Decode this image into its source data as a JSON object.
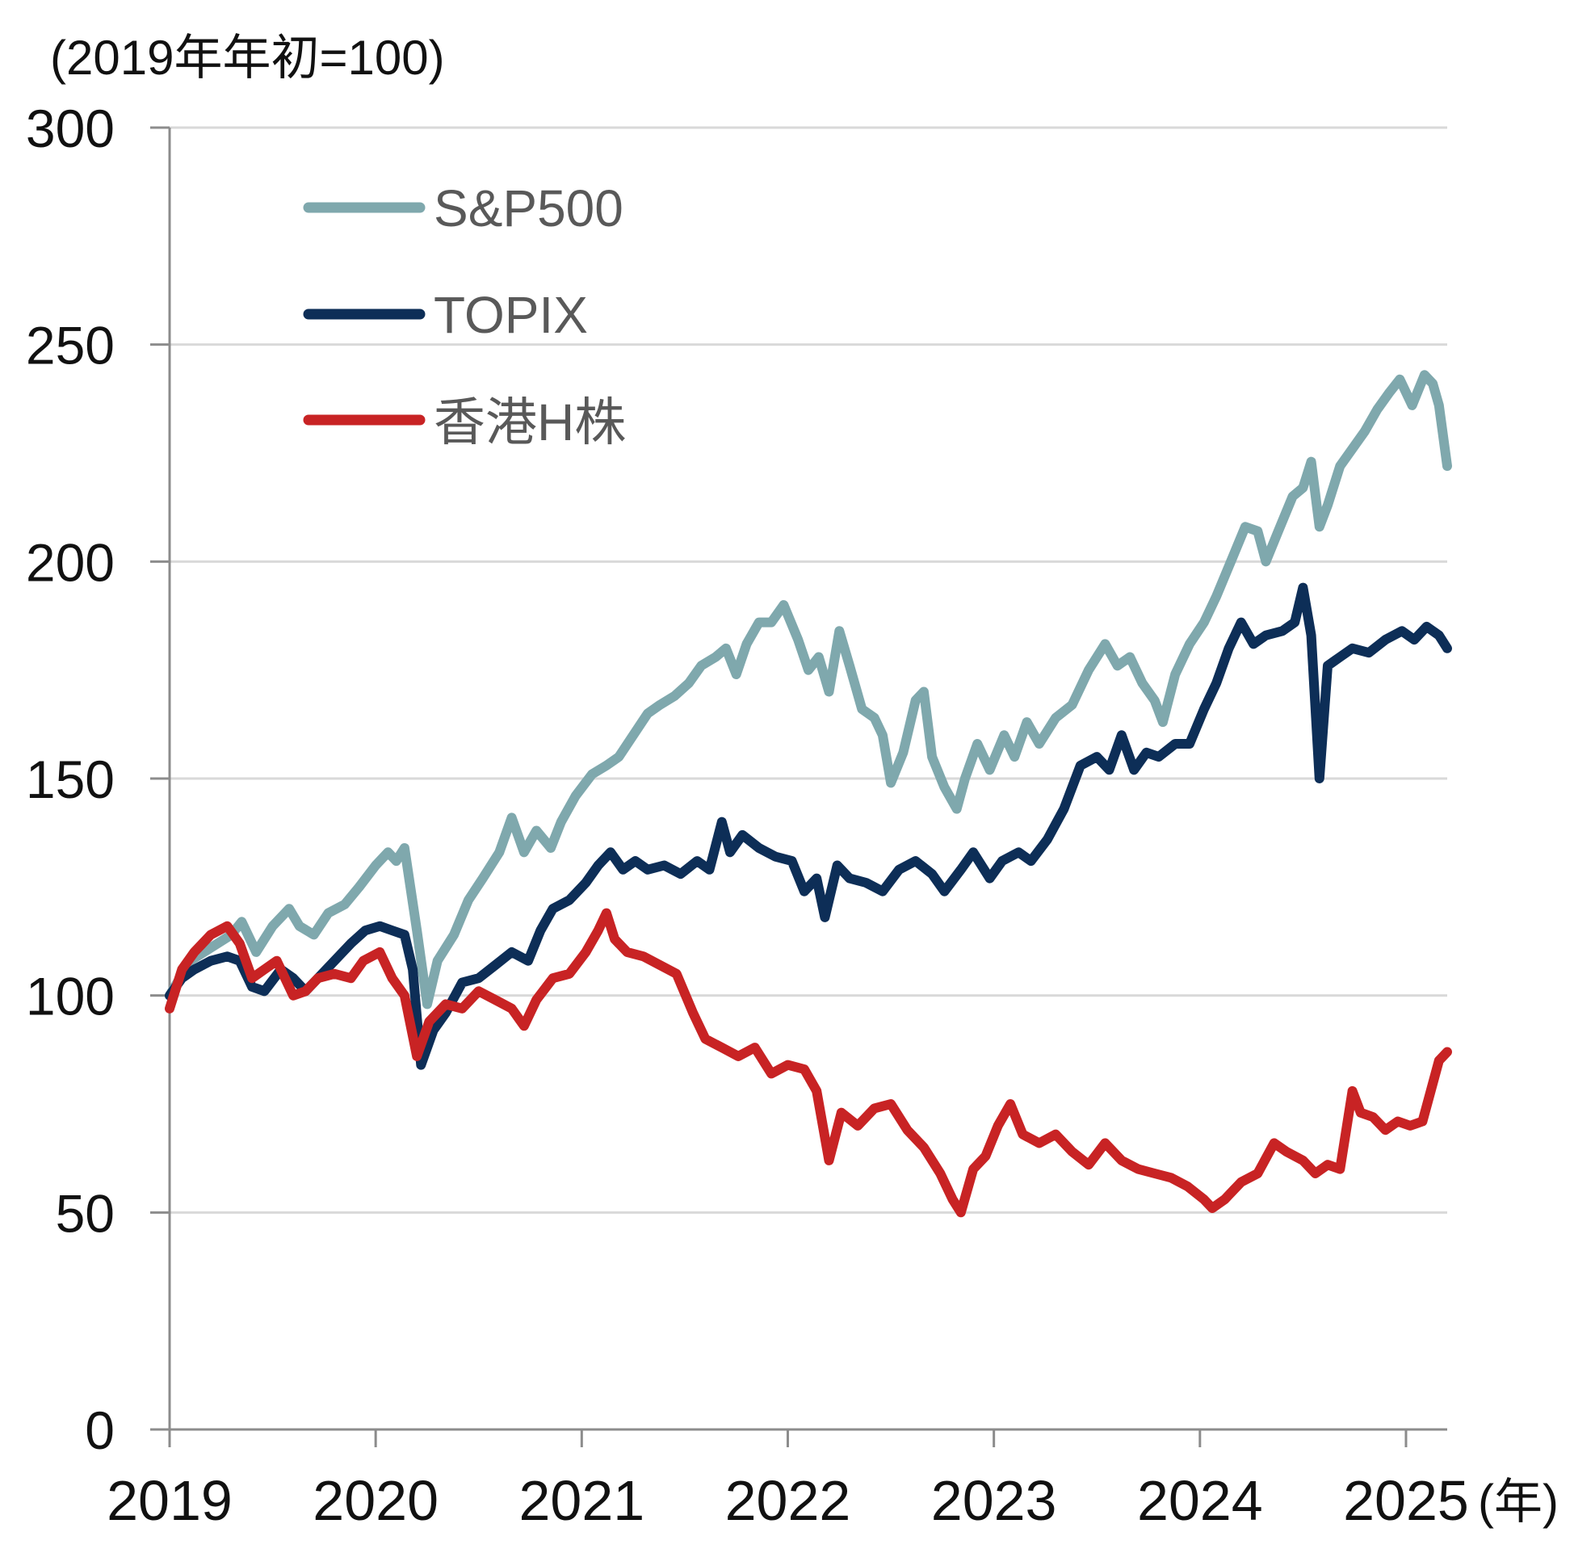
{
  "chart_data": {
    "type": "line",
    "unit_note": "(2019年年初=100)",
    "x_unit": "(年)",
    "xlim": [
      2019.0,
      2025.2
    ],
    "ylim": [
      0,
      300
    ],
    "y_ticks": [
      0,
      50,
      100,
      150,
      200,
      250,
      300
    ],
    "x_ticks": [
      2019,
      2020,
      2021,
      2022,
      2023,
      2024,
      2025
    ],
    "y_tick_labels": [
      "0",
      "50",
      "100",
      "150",
      "200",
      "250",
      "300"
    ],
    "x_tick_labels": [
      "2019",
      "2020",
      "2021",
      "2022",
      "2023",
      "2024",
      "2025"
    ],
    "grid": "horizontal",
    "legend_position": "top-left",
    "series": [
      {
        "name": "S&P500",
        "color": "#7FA8AD",
        "points": [
          [
            2019.0,
            100
          ],
          [
            2019.1,
            108
          ],
          [
            2019.2,
            111
          ],
          [
            2019.3,
            114
          ],
          [
            2019.35,
            117
          ],
          [
            2019.42,
            110
          ],
          [
            2019.5,
            116
          ],
          [
            2019.58,
            120
          ],
          [
            2019.63,
            116
          ],
          [
            2019.7,
            114
          ],
          [
            2019.77,
            119
          ],
          [
            2019.85,
            121
          ],
          [
            2019.92,
            125
          ],
          [
            2020.0,
            130
          ],
          [
            2020.06,
            133
          ],
          [
            2020.1,
            131
          ],
          [
            2020.14,
            134
          ],
          [
            2020.2,
            115
          ],
          [
            2020.25,
            98
          ],
          [
            2020.3,
            108
          ],
          [
            2020.38,
            114
          ],
          [
            2020.45,
            122
          ],
          [
            2020.52,
            127
          ],
          [
            2020.6,
            133
          ],
          [
            2020.66,
            141
          ],
          [
            2020.72,
            133
          ],
          [
            2020.78,
            138
          ],
          [
            2020.85,
            134
          ],
          [
            2020.9,
            140
          ],
          [
            2020.97,
            146
          ],
          [
            2021.05,
            151
          ],
          [
            2021.12,
            153
          ],
          [
            2021.18,
            155
          ],
          [
            2021.25,
            160
          ],
          [
            2021.32,
            165
          ],
          [
            2021.38,
            167
          ],
          [
            2021.45,
            169
          ],
          [
            2021.52,
            172
          ],
          [
            2021.58,
            176
          ],
          [
            2021.65,
            178
          ],
          [
            2021.7,
            180
          ],
          [
            2021.75,
            174
          ],
          [
            2021.8,
            181
          ],
          [
            2021.86,
            186
          ],
          [
            2021.92,
            186
          ],
          [
            2021.98,
            190
          ],
          [
            2022.05,
            182
          ],
          [
            2022.1,
            175
          ],
          [
            2022.15,
            178
          ],
          [
            2022.2,
            170
          ],
          [
            2022.25,
            184
          ],
          [
            2022.3,
            176
          ],
          [
            2022.36,
            166
          ],
          [
            2022.42,
            164
          ],
          [
            2022.46,
            160
          ],
          [
            2022.5,
            149
          ],
          [
            2022.56,
            156
          ],
          [
            2022.62,
            168
          ],
          [
            2022.66,
            170
          ],
          [
            2022.7,
            155
          ],
          [
            2022.76,
            148
          ],
          [
            2022.82,
            143
          ],
          [
            2022.86,
            150
          ],
          [
            2022.92,
            158
          ],
          [
            2022.98,
            152
          ],
          [
            2023.05,
            160
          ],
          [
            2023.1,
            155
          ],
          [
            2023.16,
            163
          ],
          [
            2023.22,
            158
          ],
          [
            2023.3,
            164
          ],
          [
            2023.38,
            167
          ],
          [
            2023.46,
            175
          ],
          [
            2023.54,
            181
          ],
          [
            2023.6,
            176
          ],
          [
            2023.66,
            178
          ],
          [
            2023.72,
            172
          ],
          [
            2023.78,
            168
          ],
          [
            2023.82,
            163
          ],
          [
            2023.88,
            174
          ],
          [
            2023.95,
            181
          ],
          [
            2024.02,
            186
          ],
          [
            2024.08,
            192
          ],
          [
            2024.15,
            200
          ],
          [
            2024.22,
            208
          ],
          [
            2024.28,
            207
          ],
          [
            2024.32,
            200
          ],
          [
            2024.38,
            207
          ],
          [
            2024.45,
            215
          ],
          [
            2024.5,
            217
          ],
          [
            2024.54,
            223
          ],
          [
            2024.58,
            208
          ],
          [
            2024.62,
            213
          ],
          [
            2024.68,
            222
          ],
          [
            2024.74,
            226
          ],
          [
            2024.8,
            230
          ],
          [
            2024.86,
            235
          ],
          [
            2024.92,
            239
          ],
          [
            2024.97,
            242
          ],
          [
            2025.03,
            236
          ],
          [
            2025.09,
            243
          ],
          [
            2025.13,
            241
          ],
          [
            2025.16,
            236
          ],
          [
            2025.2,
            222
          ]
        ]
      },
      {
        "name": "TOPIX",
        "color": "#0D2E57",
        "points": [
          [
            2019.0,
            100
          ],
          [
            2019.06,
            104
          ],
          [
            2019.12,
            106
          ],
          [
            2019.2,
            108
          ],
          [
            2019.28,
            109
          ],
          [
            2019.34,
            108
          ],
          [
            2019.4,
            102
          ],
          [
            2019.46,
            101
          ],
          [
            2019.54,
            106
          ],
          [
            2019.6,
            104
          ],
          [
            2019.66,
            101
          ],
          [
            2019.72,
            104
          ],
          [
            2019.8,
            108
          ],
          [
            2019.88,
            112
          ],
          [
            2019.95,
            115
          ],
          [
            2020.02,
            116
          ],
          [
            2020.08,
            115
          ],
          [
            2020.14,
            114
          ],
          [
            2020.18,
            106
          ],
          [
            2020.22,
            84
          ],
          [
            2020.28,
            92
          ],
          [
            2020.34,
            96
          ],
          [
            2020.42,
            103
          ],
          [
            2020.5,
            104
          ],
          [
            2020.58,
            107
          ],
          [
            2020.66,
            110
          ],
          [
            2020.74,
            108
          ],
          [
            2020.8,
            115
          ],
          [
            2020.86,
            120
          ],
          [
            2020.94,
            122
          ],
          [
            2021.02,
            126
          ],
          [
            2021.08,
            130
          ],
          [
            2021.14,
            133
          ],
          [
            2021.2,
            129
          ],
          [
            2021.26,
            131
          ],
          [
            2021.32,
            129
          ],
          [
            2021.4,
            130
          ],
          [
            2021.48,
            128
          ],
          [
            2021.56,
            131
          ],
          [
            2021.62,
            129
          ],
          [
            2021.68,
            140
          ],
          [
            2021.72,
            133
          ],
          [
            2021.78,
            137
          ],
          [
            2021.86,
            134
          ],
          [
            2021.94,
            132
          ],
          [
            2022.02,
            131
          ],
          [
            2022.08,
            124
          ],
          [
            2022.14,
            127
          ],
          [
            2022.18,
            118
          ],
          [
            2022.24,
            130
          ],
          [
            2022.3,
            127
          ],
          [
            2022.38,
            126
          ],
          [
            2022.46,
            124
          ],
          [
            2022.54,
            129
          ],
          [
            2022.62,
            131
          ],
          [
            2022.7,
            128
          ],
          [
            2022.76,
            124
          ],
          [
            2022.84,
            129
          ],
          [
            2022.9,
            133
          ],
          [
            2022.98,
            127
          ],
          [
            2023.04,
            131
          ],
          [
            2023.12,
            133
          ],
          [
            2023.18,
            131
          ],
          [
            2023.26,
            136
          ],
          [
            2023.34,
            143
          ],
          [
            2023.42,
            153
          ],
          [
            2023.5,
            155
          ],
          [
            2023.56,
            152
          ],
          [
            2023.62,
            160
          ],
          [
            2023.68,
            152
          ],
          [
            2023.74,
            156
          ],
          [
            2023.8,
            155
          ],
          [
            2023.88,
            158
          ],
          [
            2023.95,
            158
          ],
          [
            2024.02,
            166
          ],
          [
            2024.08,
            172
          ],
          [
            2024.14,
            180
          ],
          [
            2024.2,
            186
          ],
          [
            2024.26,
            181
          ],
          [
            2024.32,
            183
          ],
          [
            2024.4,
            184
          ],
          [
            2024.46,
            186
          ],
          [
            2024.5,
            194
          ],
          [
            2024.54,
            183
          ],
          [
            2024.58,
            150
          ],
          [
            2024.62,
            176
          ],
          [
            2024.68,
            178
          ],
          [
            2024.74,
            180
          ],
          [
            2024.82,
            179
          ],
          [
            2024.9,
            182
          ],
          [
            2024.98,
            184
          ],
          [
            2025.04,
            182
          ],
          [
            2025.1,
            185
          ],
          [
            2025.16,
            183
          ],
          [
            2025.2,
            180
          ]
        ]
      },
      {
        "name": "香港H株",
        "color": "#C82324",
        "points": [
          [
            2019.0,
            97
          ],
          [
            2019.06,
            106
          ],
          [
            2019.12,
            110
          ],
          [
            2019.2,
            114
          ],
          [
            2019.28,
            116
          ],
          [
            2019.34,
            112
          ],
          [
            2019.4,
            104
          ],
          [
            2019.46,
            106
          ],
          [
            2019.52,
            108
          ],
          [
            2019.6,
            100
          ],
          [
            2019.66,
            101
          ],
          [
            2019.72,
            104
          ],
          [
            2019.8,
            105
          ],
          [
            2019.88,
            104
          ],
          [
            2019.94,
            108
          ],
          [
            2020.02,
            110
          ],
          [
            2020.08,
            104
          ],
          [
            2020.14,
            100
          ],
          [
            2020.2,
            86
          ],
          [
            2020.26,
            94
          ],
          [
            2020.34,
            98
          ],
          [
            2020.42,
            97
          ],
          [
            2020.5,
            101
          ],
          [
            2020.58,
            99
          ],
          [
            2020.66,
            97
          ],
          [
            2020.72,
            93
          ],
          [
            2020.78,
            99
          ],
          [
            2020.86,
            104
          ],
          [
            2020.94,
            105
          ],
          [
            2021.02,
            110
          ],
          [
            2021.08,
            115
          ],
          [
            2021.12,
            119
          ],
          [
            2021.16,
            113
          ],
          [
            2021.22,
            110
          ],
          [
            2021.3,
            109
          ],
          [
            2021.38,
            107
          ],
          [
            2021.46,
            105
          ],
          [
            2021.54,
            96
          ],
          [
            2021.6,
            90
          ],
          [
            2021.68,
            88
          ],
          [
            2021.76,
            86
          ],
          [
            2021.84,
            88
          ],
          [
            2021.92,
            82
          ],
          [
            2022.0,
            84
          ],
          [
            2022.08,
            83
          ],
          [
            2022.14,
            78
          ],
          [
            2022.2,
            62
          ],
          [
            2022.26,
            73
          ],
          [
            2022.34,
            70
          ],
          [
            2022.42,
            74
          ],
          [
            2022.5,
            75
          ],
          [
            2022.58,
            69
          ],
          [
            2022.66,
            65
          ],
          [
            2022.74,
            59
          ],
          [
            2022.8,
            53
          ],
          [
            2022.84,
            50
          ],
          [
            2022.9,
            60
          ],
          [
            2022.96,
            63
          ],
          [
            2023.02,
            70
          ],
          [
            2023.08,
            75
          ],
          [
            2023.14,
            68
          ],
          [
            2023.22,
            66
          ],
          [
            2023.3,
            68
          ],
          [
            2023.38,
            64
          ],
          [
            2023.46,
            61
          ],
          [
            2023.54,
            66
          ],
          [
            2023.62,
            62
          ],
          [
            2023.7,
            60
          ],
          [
            2023.78,
            59
          ],
          [
            2023.86,
            58
          ],
          [
            2023.94,
            56
          ],
          [
            2024.02,
            53
          ],
          [
            2024.06,
            51
          ],
          [
            2024.12,
            53
          ],
          [
            2024.2,
            57
          ],
          [
            2024.28,
            59
          ],
          [
            2024.36,
            66
          ],
          [
            2024.42,
            64
          ],
          [
            2024.5,
            62
          ],
          [
            2024.56,
            59
          ],
          [
            2024.62,
            61
          ],
          [
            2024.68,
            60
          ],
          [
            2024.74,
            78
          ],
          [
            2024.78,
            73
          ],
          [
            2024.84,
            72
          ],
          [
            2024.9,
            69
          ],
          [
            2024.96,
            71
          ],
          [
            2025.02,
            70
          ],
          [
            2025.08,
            71
          ],
          [
            2025.12,
            78
          ],
          [
            2025.16,
            85
          ],
          [
            2025.2,
            87
          ]
        ]
      }
    ]
  }
}
